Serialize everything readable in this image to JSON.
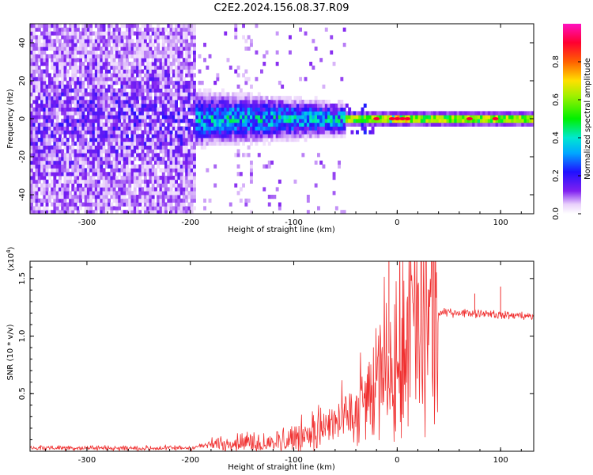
{
  "title": "C2E2.2024.156.08.37.R09",
  "colors": {
    "snr_line": "#f03030",
    "axes": "#000000",
    "background": "#ffffff"
  },
  "chart_data": [
    {
      "type": "heatmap",
      "title": "C2E2.2024.156.08.37.R09",
      "xlabel": "Height of straight line (km)",
      "ylabel": "Frequency (Hz)",
      "xlim": [
        -355,
        132
      ],
      "ylim": [
        -50,
        50
      ],
      "x_ticks": [
        -300,
        -200,
        -100,
        0,
        100
      ],
      "y_ticks": [
        -40,
        -20,
        0,
        20,
        40
      ],
      "grid": false,
      "colorbar": {
        "label": "Normalized spectral amplitude",
        "range": [
          0,
          1
        ],
        "ticks": [
          0.0,
          0.2,
          0.4,
          0.6,
          0.8
        ],
        "colormap": "rainbow (white-violet-blue-cyan-green-yellow-orange-red-magenta)"
      },
      "regions": [
        {
          "x_range": [
            -355,
            -195
          ],
          "freq_range": [
            -50,
            50
          ],
          "amplitude": "0.0-0.2",
          "texture": "speckled broadband"
        },
        {
          "x_range": [
            -195,
            -50
          ],
          "freq_range": [
            -10,
            10
          ],
          "amplitude": "0.2-0.5",
          "texture": "concentrated band"
        },
        {
          "x_range": [
            -50,
            132
          ],
          "freq_range": [
            -2,
            2
          ],
          "amplitude": "0.5-1.0",
          "texture": "narrow line at 0 Hz"
        }
      ]
    },
    {
      "type": "line",
      "xlabel": "Height of straight line (km)",
      "ylabel": "SNR (10 * v/v)",
      "y_scale_label": "(x10",
      "y_scale_exponent": "4",
      "y_scale_close": ")",
      "xlim": [
        -355,
        132
      ],
      "ylim": [
        0,
        16500
      ],
      "x_ticks": [
        -300,
        -200,
        -100,
        0,
        100
      ],
      "y_ticks": [
        5000,
        10000,
        15000
      ],
      "y_tick_labels": [
        "0.5",
        "1.0",
        "1.5"
      ],
      "grid": false,
      "series": [
        {
          "x": [
            -355,
            -300,
            -250,
            -200,
            -180,
            -150,
            -120,
            -100,
            -80,
            -60,
            -45,
            -35,
            -25,
            -15,
            -8,
            -3,
            0,
            5,
            10,
            20,
            30,
            40,
            50,
            70,
            90,
            100,
            110,
            120,
            132
          ],
          "y": [
            300,
            300,
            250,
            300,
            600,
            800,
            900,
            1200,
            1800,
            2500,
            3200,
            4000,
            5000,
            7000,
            8500,
            9000,
            9500,
            10000,
            10500,
            11200,
            11600,
            11900,
            12100,
            12000,
            12000,
            11800,
            11800,
            11800,
            11700
          ]
        }
      ],
      "spikes": [
        {
          "x": -8,
          "y": 16500
        },
        {
          "x": 75,
          "y": 13700
        },
        {
          "x": 100,
          "y": 14300
        }
      ]
    }
  ]
}
